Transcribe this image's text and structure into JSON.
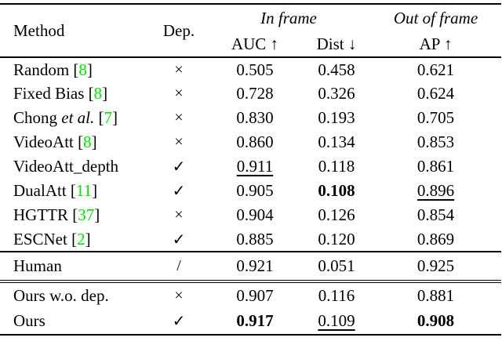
{
  "table": {
    "colors": {
      "citation": "#00e000",
      "text": "#000000"
    },
    "header": {
      "method": "Method",
      "dep": "Dep.",
      "in_frame": "In frame",
      "out_of_frame": "Out of frame",
      "auc": "AUC ↑",
      "dist": "Dist ↓",
      "ap": "AP ↑"
    },
    "groups": [
      {
        "rows": [
          {
            "method": [
              {
                "text": "Random ["
              },
              {
                "text": "8",
                "cite": true
              },
              {
                "text": "]"
              }
            ],
            "dep": "×",
            "auc": {
              "text": "0.505"
            },
            "dist": {
              "text": "0.458"
            },
            "ap": {
              "text": "0.621"
            }
          },
          {
            "method": [
              {
                "text": "Fixed Bias ["
              },
              {
                "text": "8",
                "cite": true
              },
              {
                "text": "]"
              }
            ],
            "dep": "×",
            "auc": {
              "text": "0.728"
            },
            "dist": {
              "text": "0.326"
            },
            "ap": {
              "text": "0.624"
            }
          },
          {
            "method": [
              {
                "text": "Chong "
              },
              {
                "text": "et al.",
                "italic": true
              },
              {
                "text": " ["
              },
              {
                "text": "7",
                "cite": true
              },
              {
                "text": "]"
              }
            ],
            "dep": "×",
            "auc": {
              "text": "0.830"
            },
            "dist": {
              "text": "0.193"
            },
            "ap": {
              "text": "0.705"
            }
          },
          {
            "method": [
              {
                "text": "VideoAtt ["
              },
              {
                "text": "8",
                "cite": true
              },
              {
                "text": "]"
              }
            ],
            "dep": "×",
            "auc": {
              "text": "0.860"
            },
            "dist": {
              "text": "0.134"
            },
            "ap": {
              "text": "0.853"
            }
          },
          {
            "method": [
              {
                "text": "VideoAtt_depth"
              }
            ],
            "dep": "✓",
            "auc": {
              "text": "0.911",
              "style": "underline"
            },
            "dist": {
              "text": "0.118"
            },
            "ap": {
              "text": "0.861"
            }
          },
          {
            "method": [
              {
                "text": "DualAtt ["
              },
              {
                "text": "11",
                "cite": true
              },
              {
                "text": "]"
              }
            ],
            "dep": "✓",
            "auc": {
              "text": "0.905"
            },
            "dist": {
              "text": "0.108",
              "style": "bold"
            },
            "ap": {
              "text": "0.896",
              "style": "underline"
            }
          },
          {
            "method": [
              {
                "text": "HGTTR ["
              },
              {
                "text": "37",
                "cite": true
              },
              {
                "text": "]"
              }
            ],
            "dep": "×",
            "auc": {
              "text": "0.904"
            },
            "dist": {
              "text": "0.126"
            },
            "ap": {
              "text": "0.854"
            }
          },
          {
            "method": [
              {
                "text": "ESCNet ["
              },
              {
                "text": "2",
                "cite": true
              },
              {
                "text": "]"
              }
            ],
            "dep": "✓",
            "auc": {
              "text": "0.885"
            },
            "dist": {
              "text": "0.120"
            },
            "ap": {
              "text": "0.869"
            }
          }
        ]
      },
      {
        "rows": [
          {
            "method": [
              {
                "text": "Human"
              }
            ],
            "dep": "/",
            "auc": {
              "text": "0.921"
            },
            "dist": {
              "text": "0.051"
            },
            "ap": {
              "text": "0.925"
            }
          }
        ]
      },
      {
        "rows": [
          {
            "method": [
              {
                "text": "Ours w.o. dep."
              }
            ],
            "dep": "×",
            "auc": {
              "text": "0.907"
            },
            "dist": {
              "text": "0.116"
            },
            "ap": {
              "text": "0.881"
            }
          },
          {
            "method": [
              {
                "text": "Ours"
              }
            ],
            "dep": "✓",
            "auc": {
              "text": "0.917",
              "style": "bold"
            },
            "dist": {
              "text": "0.109",
              "style": "underline"
            },
            "ap": {
              "text": "0.908",
              "style": "bold"
            }
          }
        ]
      }
    ]
  }
}
